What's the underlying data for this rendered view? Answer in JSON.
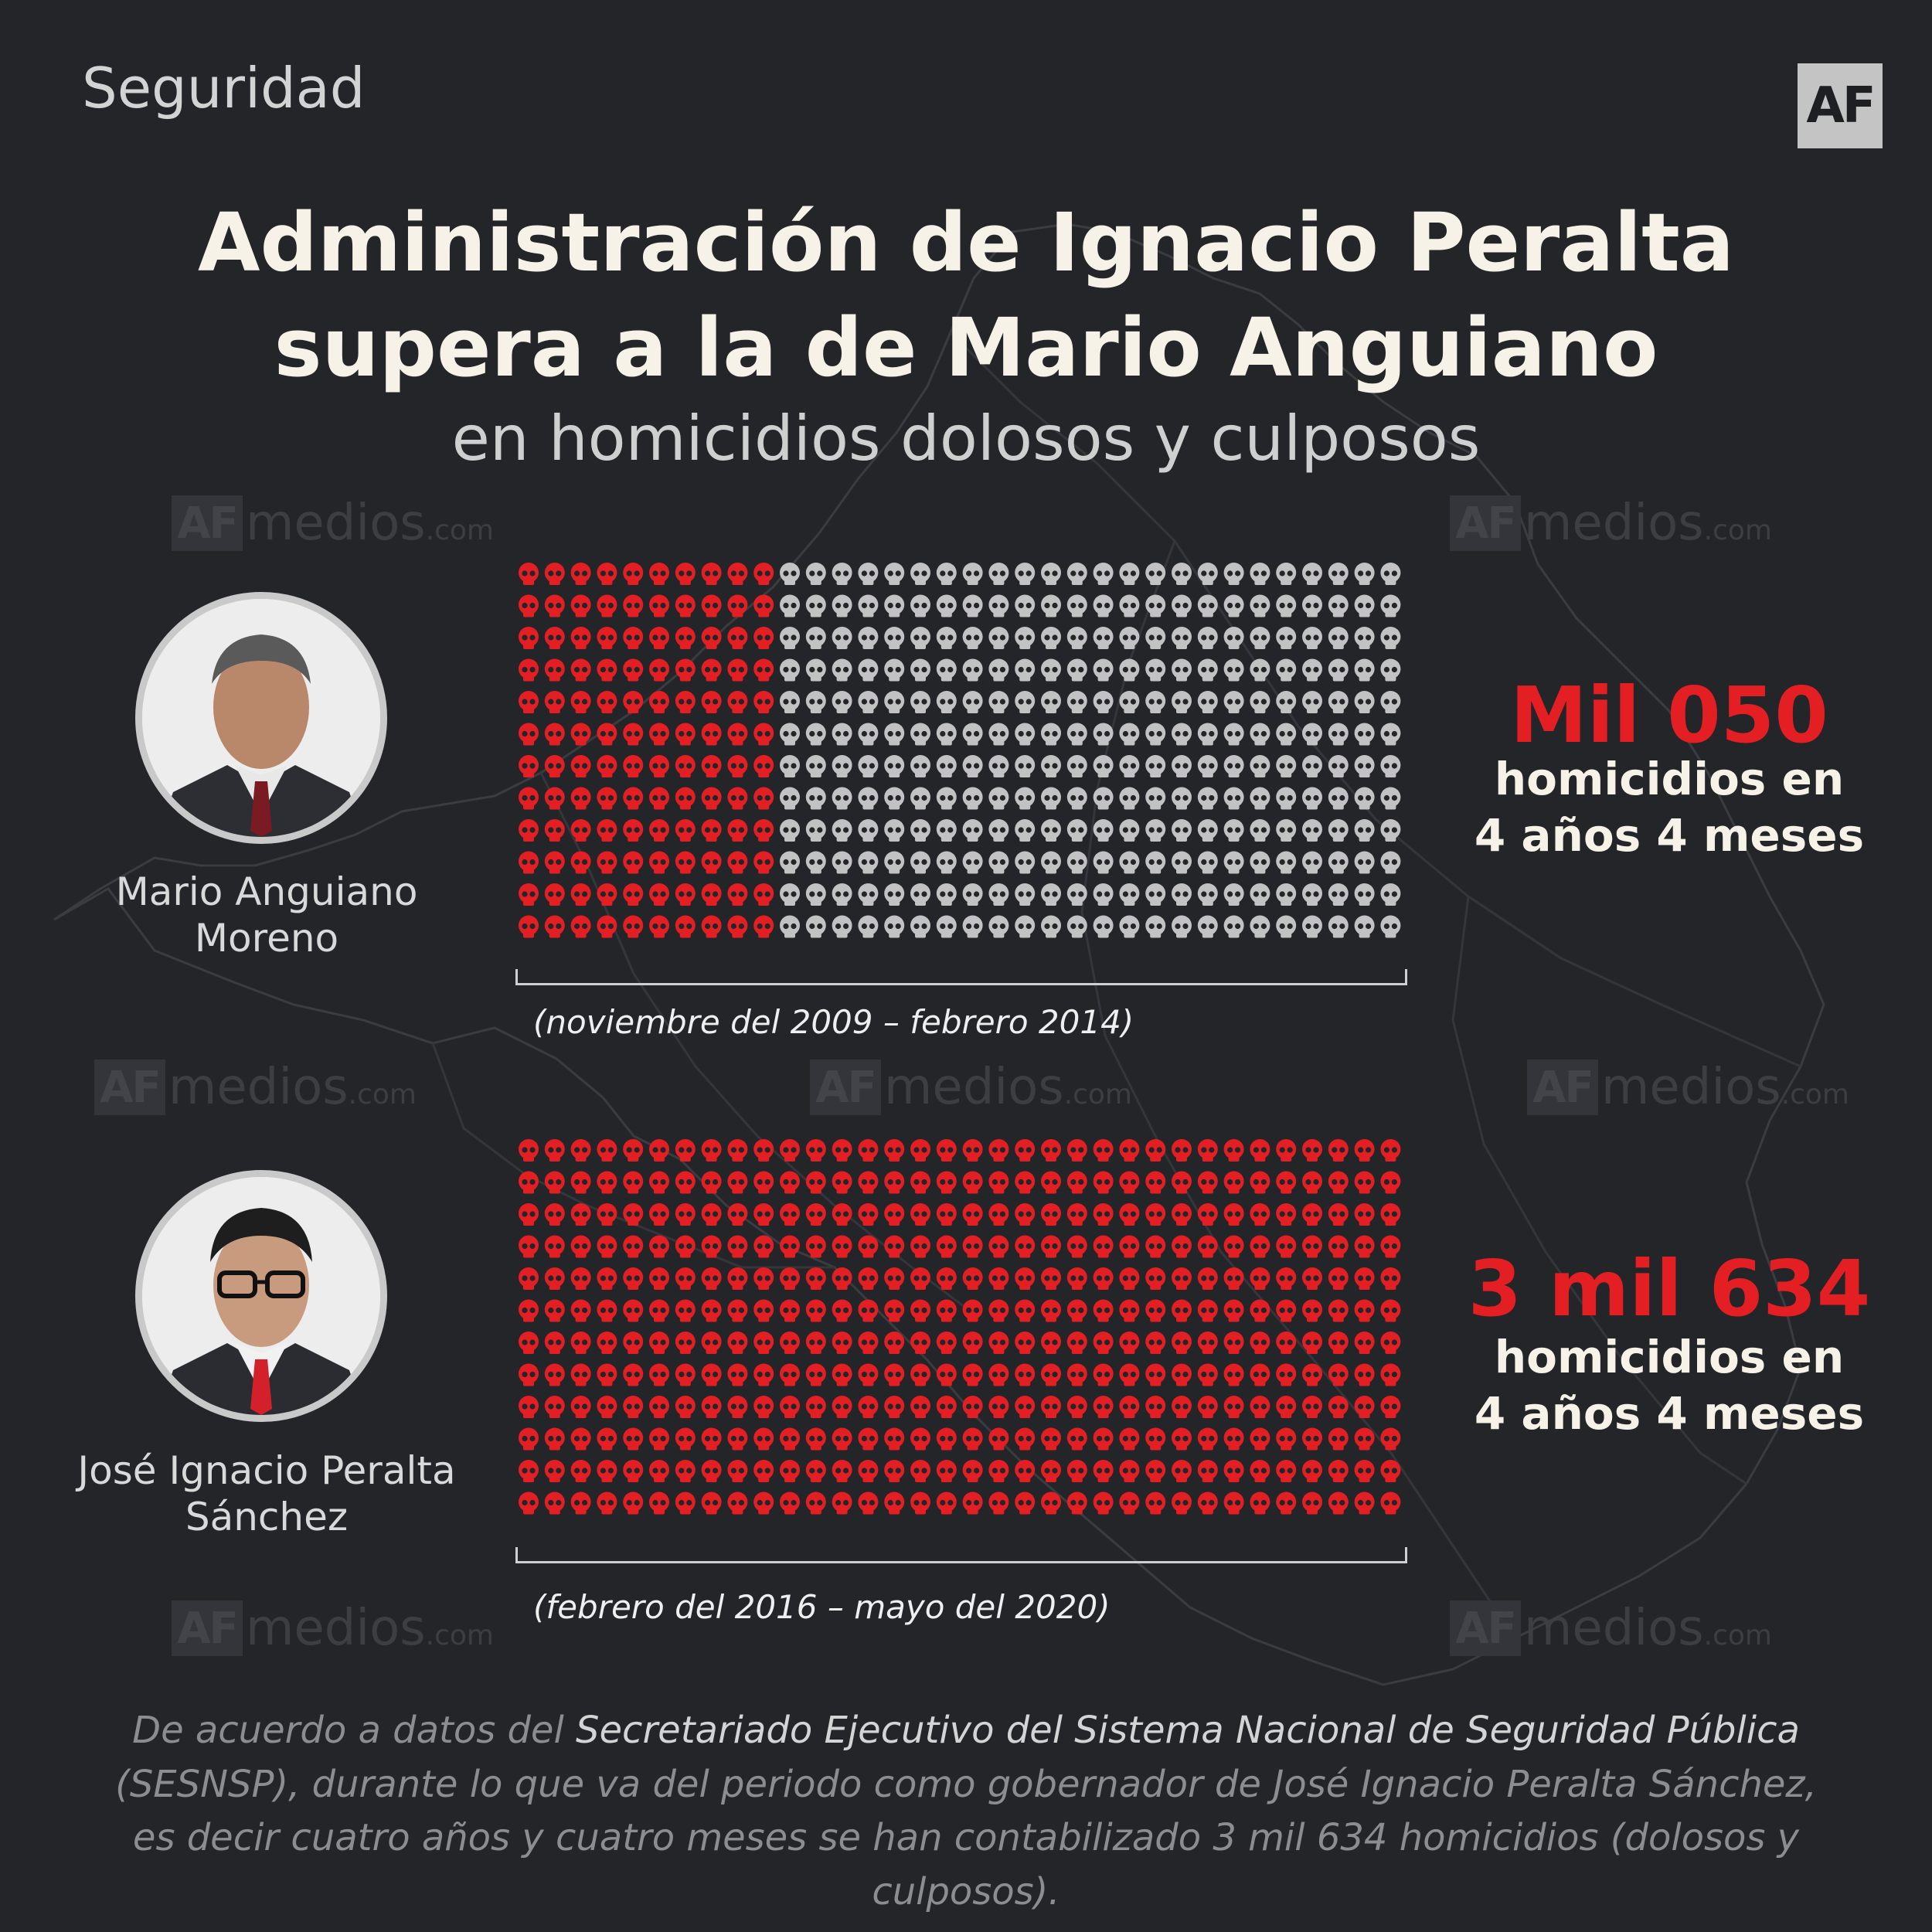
{
  "section_label": "Seguridad",
  "logo_text": "AF",
  "title_line1": "Administración de Ignacio Peralta",
  "title_line2": "supera a la de Mario Anguiano",
  "subtitle": "en homicidios dolosos y culposos",
  "watermark": {
    "af": "AF",
    "medios": "medios",
    "com": ".com"
  },
  "colors": {
    "accent_red": "#e41f23",
    "skull_gray": "#c2c2c2",
    "background": "#232529"
  },
  "governors": [
    {
      "name_line1": "Mario Anguiano",
      "name_line2": "Moreno",
      "period": "(noviembre del 2009 – febrero 2014)",
      "number": "Mil 050",
      "caption_line1": "homicidios en",
      "caption_line2": "4 años 4 meses",
      "icons_total": 408,
      "icons_red": 120,
      "icon": "skull-icon"
    },
    {
      "name_line1": "José Ignacio Peralta",
      "name_line2": "Sánchez",
      "period": "(febrero del 2016 – mayo del 2020)",
      "number": "3 mil 634",
      "caption_line1": "homicidios en",
      "caption_line2": "4 años 4 meses",
      "icons_total": 408,
      "icons_red": 408,
      "icon": "skull-icon"
    }
  ],
  "footer": {
    "part1": "De acuerdo a datos del ",
    "source": "Secretariado Ejecutivo del Sistema Nacional de Seguridad Pública",
    "part2": "(SESNSP), durante lo que va del periodo como gobernador de José Ignacio Peralta Sánchez,",
    "part3": "es decir cuatro años y cuatro meses se han contabilizado 3 mil 634 homicidios (dolosos y culposos)."
  }
}
